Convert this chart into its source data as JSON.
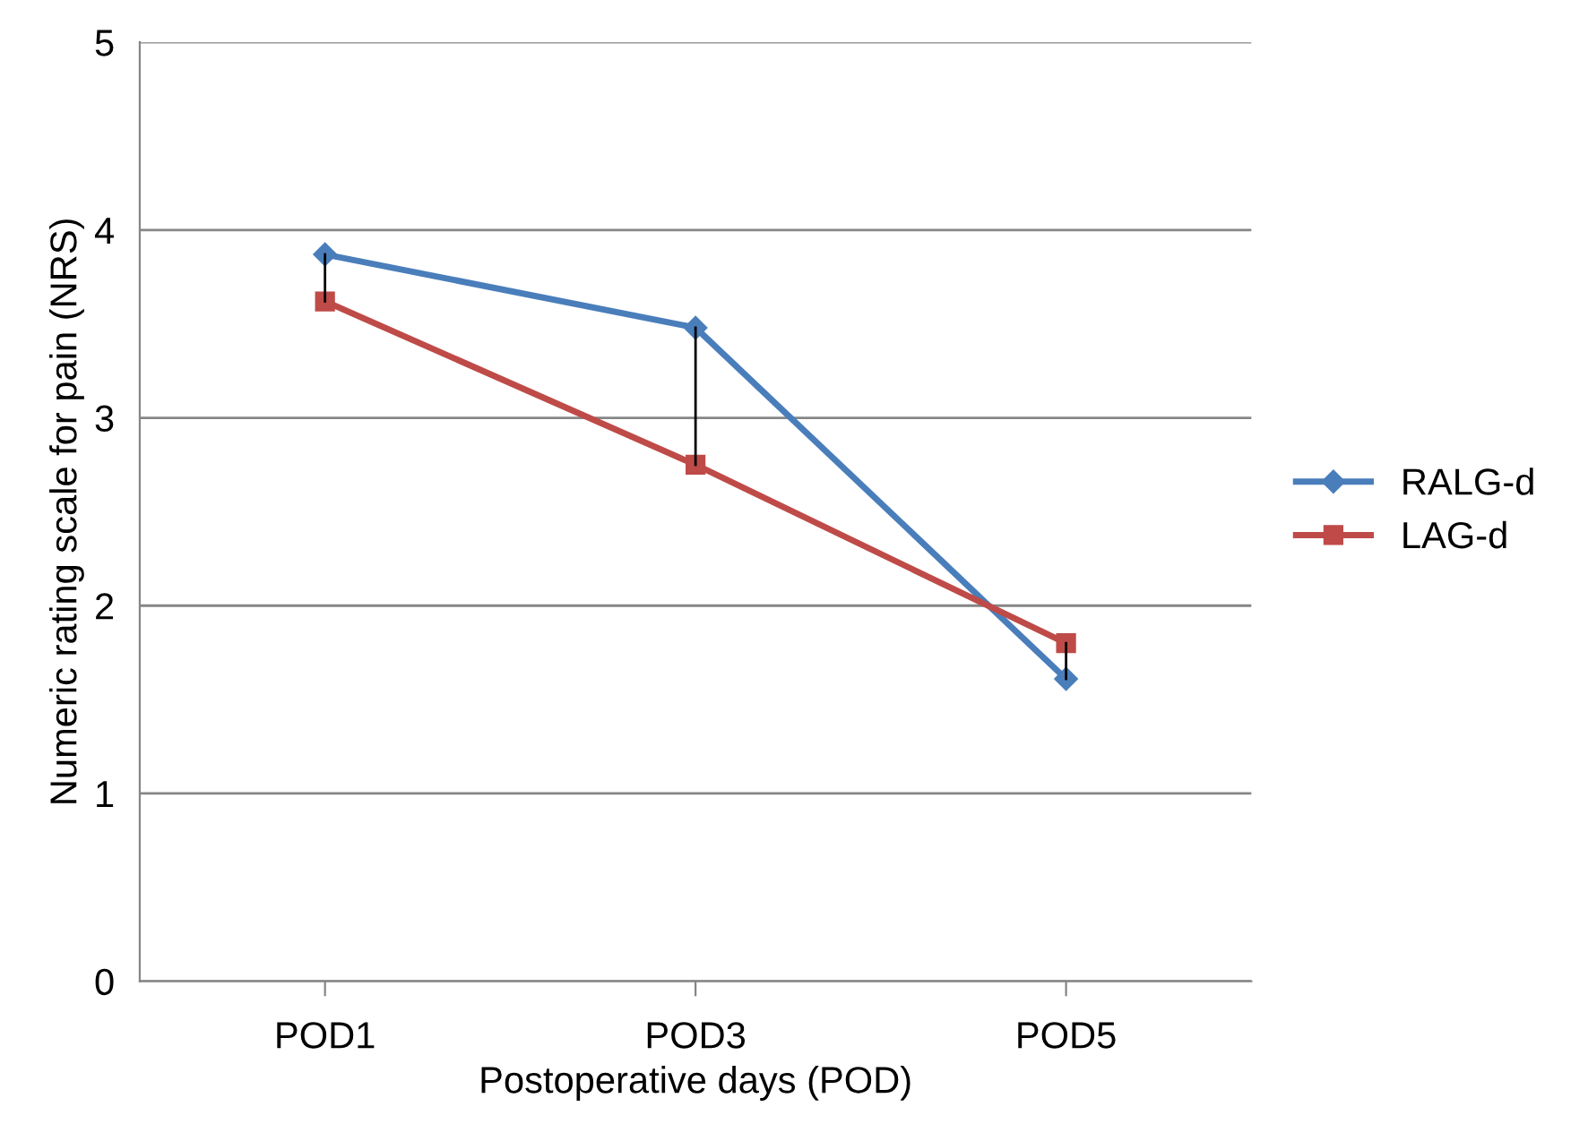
{
  "chart_data": {
    "type": "line",
    "xlabel": "Postoperative days (POD)",
    "ylabel": "Numeric rating scale for pain (NRS)",
    "categories": [
      "POD1",
      "POD3",
      "POD5"
    ],
    "series": [
      {
        "name": "RALG-d",
        "color": "#4a7ebb",
        "values": [
          3.87,
          3.48,
          1.61
        ],
        "marker": "diamond"
      },
      {
        "name": "LAG-d",
        "color": "#be4b48",
        "values": [
          3.62,
          2.75,
          1.8
        ],
        "marker": "square",
        "errors": [
          [
            3.62,
            3.87
          ],
          [
            2.75,
            3.48
          ],
          [
            1.61,
            1.8
          ]
        ]
      }
    ],
    "ylim": [
      0,
      5
    ],
    "yticks": [
      0,
      1,
      2,
      3,
      4,
      5
    ],
    "grid": "y",
    "legend": "right",
    "line_style": "solid"
  }
}
